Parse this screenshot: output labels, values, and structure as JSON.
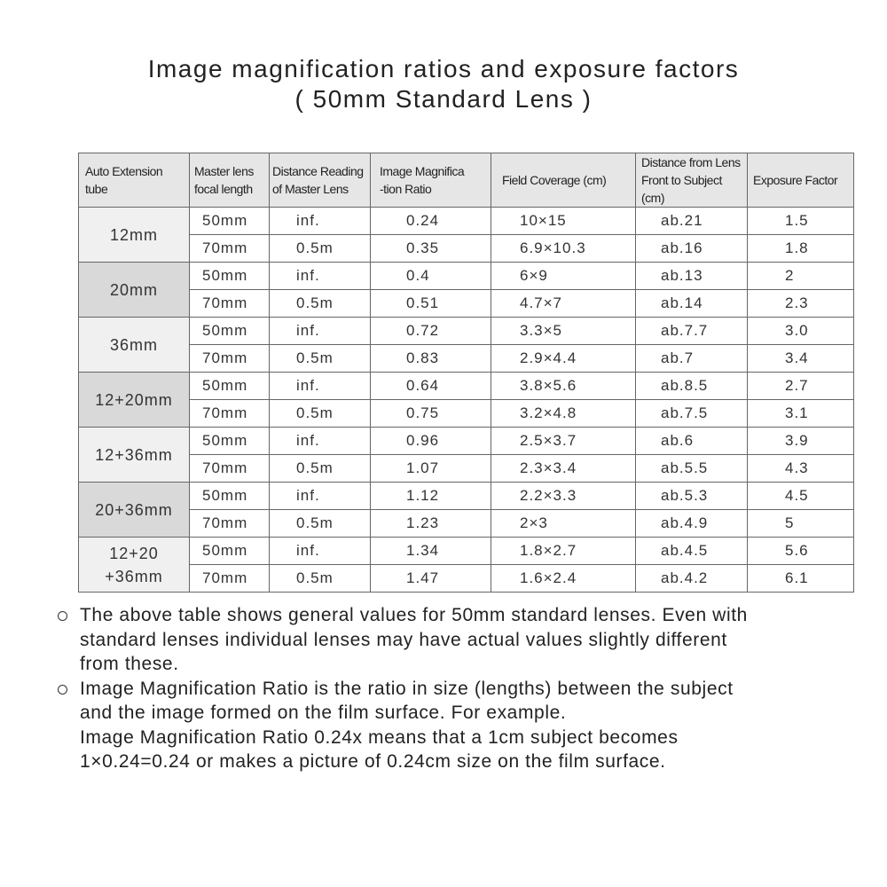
{
  "title": {
    "line1": "Image magnification ratios and exposure factors",
    "line2": "( 50mm Standard Lens )"
  },
  "table": {
    "header": [
      [
        "Auto Extension",
        "tube"
      ],
      [
        "Master lens",
        "focal length"
      ],
      [
        "Distance Reading",
        "of Master Lens"
      ],
      [
        "Image Magnifica",
        "-tion Ratio"
      ],
      [
        "Field Coverage (cm)"
      ],
      [
        "Distance from Lens",
        "Front to Subject (cm)"
      ],
      [
        "Exposure Factor"
      ]
    ],
    "groups": [
      {
        "tube": [
          "12mm"
        ],
        "rows": [
          [
            "50mm",
            "inf.",
            "0.24",
            "10×15",
            "ab.21",
            "1.5"
          ],
          [
            "70mm",
            "0.5m",
            "0.35",
            "6.9×10.3",
            "ab.16",
            "1.8"
          ]
        ]
      },
      {
        "tube": [
          "20mm"
        ],
        "rows": [
          [
            "50mm",
            "inf.",
            "0.4",
            "6×9",
            "ab.13",
            "2"
          ],
          [
            "70mm",
            "0.5m",
            "0.51",
            "4.7×7",
            "ab.14",
            "2.3"
          ]
        ]
      },
      {
        "tube": [
          "36mm"
        ],
        "rows": [
          [
            "50mm",
            "inf.",
            "0.72",
            "3.3×5",
            "ab.7.7",
            "3.0"
          ],
          [
            "70mm",
            "0.5m",
            "0.83",
            "2.9×4.4",
            "ab.7",
            "3.4"
          ]
        ]
      },
      {
        "tube": [
          "12+20mm"
        ],
        "rows": [
          [
            "50mm",
            "inf.",
            "0.64",
            "3.8×5.6",
            "ab.8.5",
            "2.7"
          ],
          [
            "70mm",
            "0.5m",
            "0.75",
            "3.2×4.8",
            "ab.7.5",
            "3.1"
          ]
        ]
      },
      {
        "tube": [
          "12+36mm"
        ],
        "rows": [
          [
            "50mm",
            "inf.",
            "0.96",
            "2.5×3.7",
            "ab.6",
            "3.9"
          ],
          [
            "70mm",
            "0.5m",
            "1.07",
            "2.3×3.4",
            "ab.5.5",
            "4.3"
          ]
        ]
      },
      {
        "tube": [
          "20+36mm"
        ],
        "rows": [
          [
            "50mm",
            "inf.",
            "1.12",
            "2.2×3.3",
            "ab.5.3",
            "4.5"
          ],
          [
            "70mm",
            "0.5m",
            "1.23",
            "2×3",
            "ab.4.9",
            "5"
          ]
        ]
      },
      {
        "tube": [
          "12+20",
          "+36mm"
        ],
        "rows": [
          [
            "50mm",
            "inf.",
            "1.34",
            "1.8×2.7",
            "ab.4.5",
            "5.6"
          ],
          [
            "70mm",
            "0.5m",
            "1.47",
            "1.6×2.4",
            "ab.4.2",
            "6.1"
          ]
        ]
      }
    ]
  },
  "notes": [
    [
      "The above table shows general values for 50mm standard lenses. Even with",
      "standard lenses individual lenses may have actual values slightly different",
      "from these."
    ],
    [
      "Image Magnification Ratio is the ratio in size (lengths) between the subject",
      "and the image formed on the film surface. For example.",
      "Image Magnification Ratio 0.24x means that a 1cm subject becomes",
      "1×0.24=0.24 or makes a picture of 0.24cm size on the film surface."
    ]
  ]
}
